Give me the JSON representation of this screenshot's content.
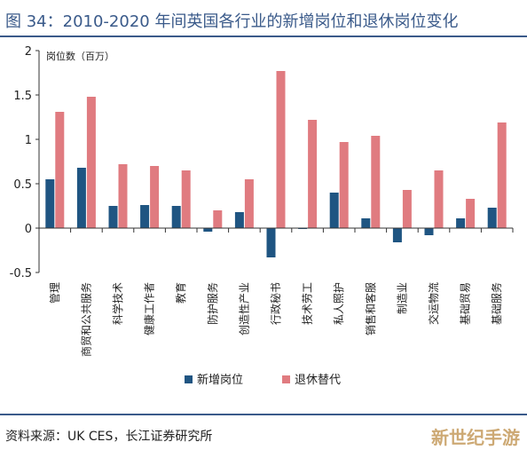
{
  "title": "图 34：2010-2020 年间英国各行业的新增岗位和退休岗位变化",
  "source": "资料来源：UK CES，长江证券研究所",
  "watermark": "新世纪手游",
  "chart_data": {
    "type": "bar",
    "ylabel": "岗位数（百万）",
    "ylim": [
      -0.5,
      2
    ],
    "yticks": [
      -0.5,
      0,
      0.5,
      1,
      1.5,
      2
    ],
    "ytick_labels": [
      "-0.5",
      "0",
      "0.5",
      "1",
      "1.5",
      "2"
    ],
    "categories": [
      "管理",
      "商贸和公共服务",
      "科学技术",
      "健康工作者",
      "教育",
      "防护服务",
      "创造性产业",
      "行政秘书",
      "技术劳工",
      "私人照护",
      "销售和客服",
      "制造业",
      "交运物流",
      "基础贸易",
      "基础服务"
    ],
    "series": [
      {
        "name": "新增岗位",
        "color": "#1f5582",
        "values": [
          0.55,
          0.68,
          0.25,
          0.26,
          0.25,
          -0.04,
          0.18,
          -0.33,
          -0.01,
          0.4,
          0.11,
          -0.16,
          -0.08,
          0.11,
          0.23
        ]
      },
      {
        "name": "退休替代",
        "color": "#e07b80",
        "values": [
          1.31,
          1.48,
          0.72,
          0.7,
          0.65,
          0.2,
          0.55,
          1.77,
          1.22,
          0.97,
          1.04,
          0.43,
          0.65,
          0.33,
          1.19
        ]
      }
    ],
    "legend_position": "bottom-center",
    "grid": false
  }
}
